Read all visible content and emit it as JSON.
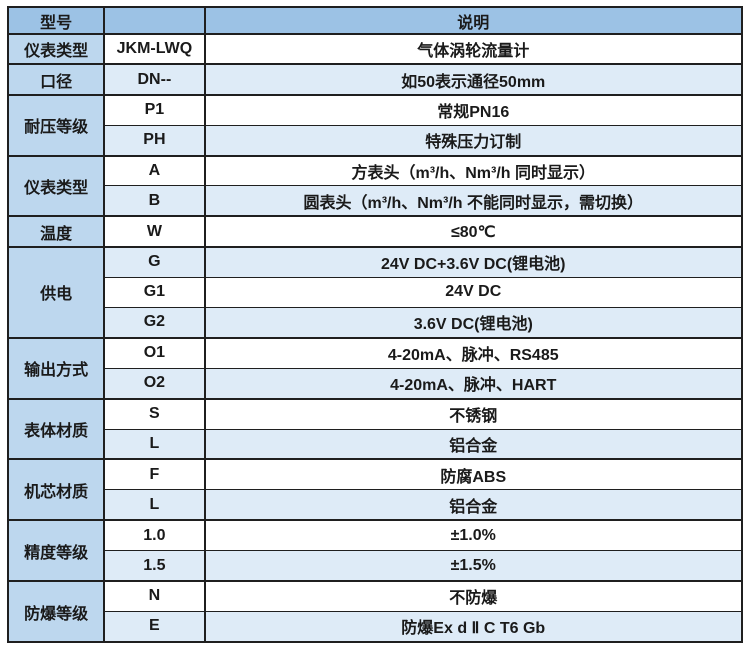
{
  "table": {
    "header": {
      "model": "型号",
      "code": "",
      "description": "说明"
    },
    "colors": {
      "header_bg": "#9cc2e5",
      "category_bg": "#bdd7ee",
      "stripe_bg": "#deebf7",
      "row_bg": "#ffffff",
      "border": "#1f1f1f",
      "text": "#1a1a1a"
    },
    "groups": [
      {
        "label": "仪表类型",
        "rows": [
          {
            "code": "JKM-LWQ",
            "desc": "气体涡轮流量计"
          }
        ]
      },
      {
        "label": "口径",
        "rows": [
          {
            "code": "DN--",
            "desc": "如50表示通径50mm"
          }
        ]
      },
      {
        "label": "耐压等级",
        "rows": [
          {
            "code": "P1",
            "desc": "常规PN16"
          },
          {
            "code": "PH",
            "desc": "特殊压力订制"
          }
        ]
      },
      {
        "label": "仪表类型",
        "rows": [
          {
            "code": "A",
            "desc": "方表头（m³/h、Nm³/h 同时显示）"
          },
          {
            "code": "B",
            "desc": "圆表头（m³/h、Nm³/h 不能同时显示，需切换）"
          }
        ]
      },
      {
        "label": "温度",
        "rows": [
          {
            "code": "W",
            "desc": "≤80℃"
          }
        ]
      },
      {
        "label": "供电",
        "rows": [
          {
            "code": "G",
            "desc": "24V DC+3.6V DC(锂电池)"
          },
          {
            "code": "G1",
            "desc": "24V DC"
          },
          {
            "code": "G2",
            "desc": "3.6V DC(锂电池)"
          }
        ]
      },
      {
        "label": "输出方式",
        "rows": [
          {
            "code": "O1",
            "desc": "4-20mA、脉冲、RS485"
          },
          {
            "code": "O2",
            "desc": "4-20mA、脉冲、HART"
          }
        ]
      },
      {
        "label": "表体材质",
        "rows": [
          {
            "code": "S",
            "desc": "不锈钢"
          },
          {
            "code": "L",
            "desc": "铝合金"
          }
        ]
      },
      {
        "label": "机芯材质",
        "rows": [
          {
            "code": "F",
            "desc": "防腐ABS"
          },
          {
            "code": "L",
            "desc": "铝合金"
          }
        ]
      },
      {
        "label": "精度等级",
        "rows": [
          {
            "code": "1.0",
            "desc": "±1.0%"
          },
          {
            "code": "1.5",
            "desc": "±1.5%"
          }
        ]
      },
      {
        "label": "防爆等级",
        "rows": [
          {
            "code": "N",
            "desc": "不防爆"
          },
          {
            "code": "E",
            "desc": "防爆Ex d Ⅱ C T6 Gb"
          }
        ]
      }
    ]
  }
}
